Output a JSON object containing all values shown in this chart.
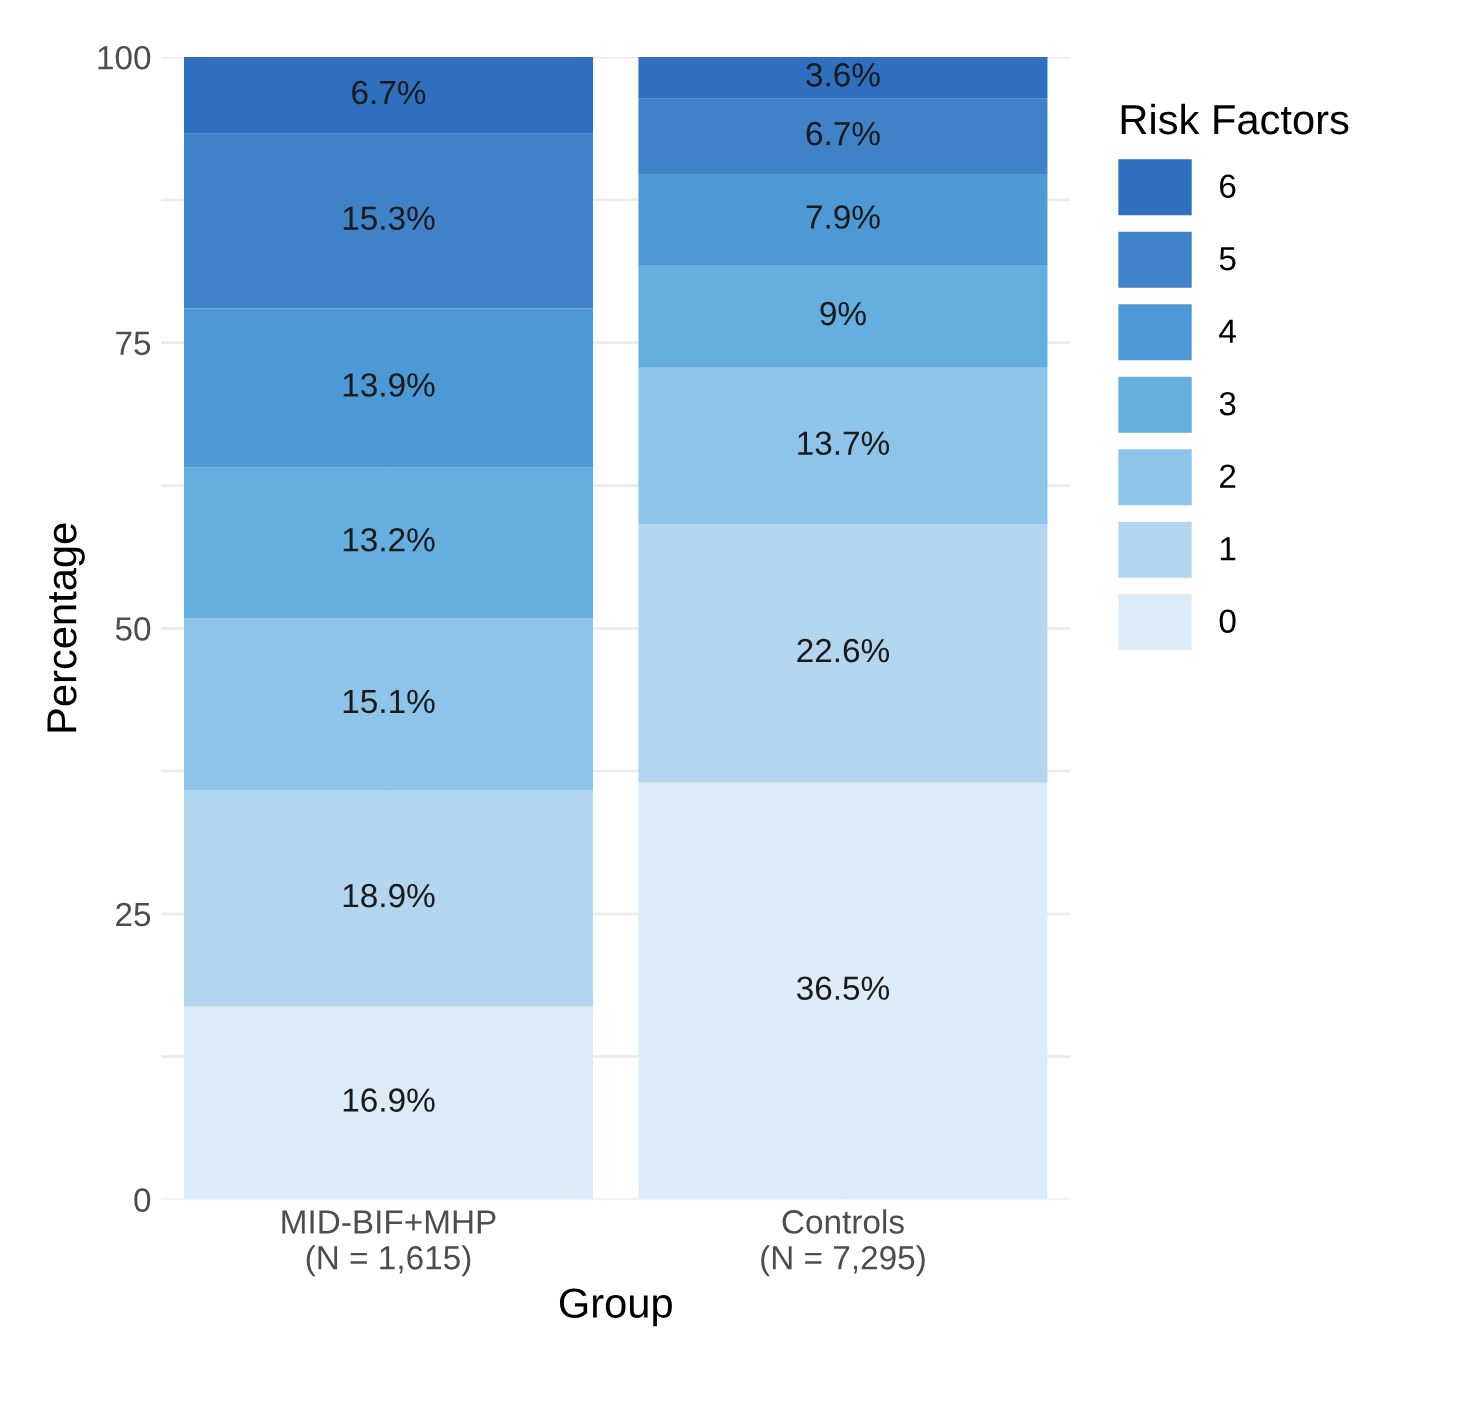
{
  "chart_data": {
    "type": "bar",
    "stacked": true,
    "xlabel": "Group",
    "ylabel": "Percentage",
    "legend_title": "Risk Factors",
    "legend": "right",
    "grid": true,
    "categories": [
      "MID-BIF+MHP\n(N = 1,615)",
      "Controls\n(N = 7,295)"
    ],
    "ylim": [
      0,
      100
    ],
    "yticks": [
      0,
      {
        "value": 12.5,
        "label": null
      },
      25,
      {
        "value": 37.5,
        "label": null
      },
      50,
      {
        "value": 62.5,
        "label": null
      },
      75,
      {
        "value": 87.5,
        "label": null
      },
      100
    ],
    "series": [
      {
        "name": "0",
        "color": "#dbecf8",
        "values": [
          16.9,
          36.5
        ],
        "value_labels": [
          "16.9%",
          "36.5%"
        ]
      },
      {
        "name": "1",
        "color": "#b2d6f0",
        "values": [
          18.9,
          22.6
        ],
        "value_labels": [
          "18.9%",
          "22.6%"
        ]
      },
      {
        "name": "2",
        "color": "#8ec4ea",
        "values": [
          15.1,
          13.7
        ],
        "value_labels": [
          "15.1%",
          "13.7%"
        ]
      },
      {
        "name": "3",
        "color": "#64aee0",
        "values": [
          13.2,
          9
        ],
        "value_labels": [
          "13.2%",
          "9%"
        ]
      },
      {
        "name": "4",
        "color": "#4d99d6",
        "values": [
          13.9,
          7.9
        ],
        "value_labels": [
          "13.9%",
          "7.9%"
        ]
      },
      {
        "name": "5",
        "color": "#3f82c8",
        "values": [
          15.3,
          6.7
        ],
        "value_labels": [
          "15.3%",
          "6.7%"
        ]
      },
      {
        "name": "6",
        "color": "#2e6fbf",
        "values": [
          6.7,
          3.6
        ],
        "value_labels": [
          "6.7%",
          "3.6%"
        ]
      }
    ]
  }
}
